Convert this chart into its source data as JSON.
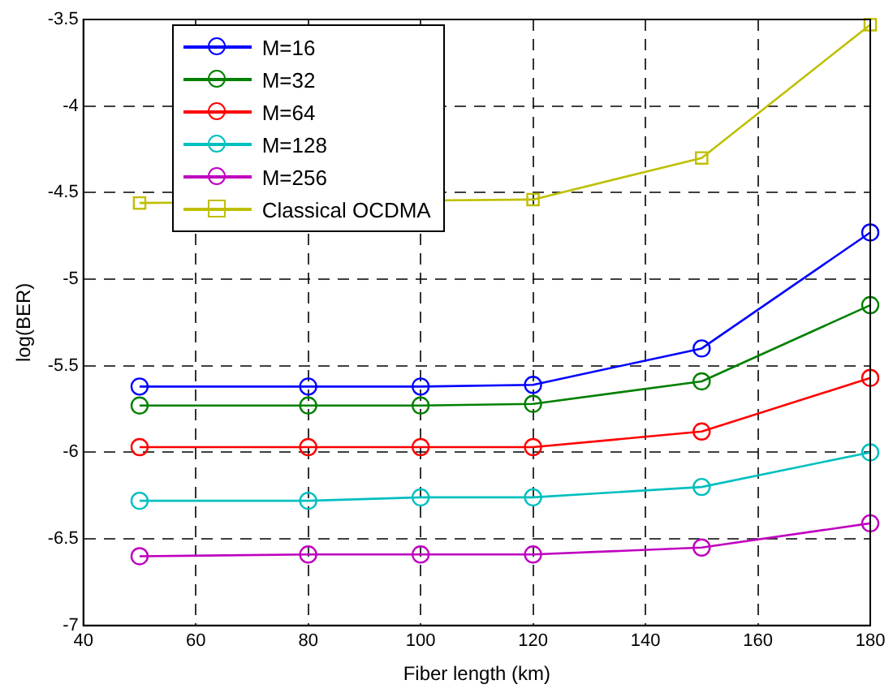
{
  "chart_data": {
    "type": "line",
    "xlabel": "Fiber length (km)",
    "ylabel": "log(BER)",
    "x": [
      50,
      80,
      100,
      120,
      150,
      180
    ],
    "series": [
      {
        "name": "M=16",
        "color": "#0000ff",
        "marker": "circle",
        "values": [
          -5.62,
          -5.62,
          -5.62,
          -5.61,
          -5.4,
          -4.73
        ]
      },
      {
        "name": "M=32",
        "color": "#008000",
        "marker": "circle",
        "values": [
          -5.73,
          -5.73,
          -5.73,
          -5.72,
          -5.59,
          -5.15
        ]
      },
      {
        "name": "M=64",
        "color": "#ff0000",
        "marker": "circle",
        "values": [
          -5.97,
          -5.97,
          -5.97,
          -5.97,
          -5.88,
          -5.57
        ]
      },
      {
        "name": "M=128",
        "color": "#00bfbf",
        "marker": "circle",
        "values": [
          -6.28,
          -6.28,
          -6.26,
          -6.26,
          -6.2,
          -6.0
        ]
      },
      {
        "name": "M=256",
        "color": "#bf00bf",
        "marker": "circle",
        "values": [
          -6.6,
          -6.59,
          -6.59,
          -6.59,
          -6.55,
          -6.41
        ]
      },
      {
        "name": "Classical OCDMA",
        "color": "#bfbf00",
        "marker": "square",
        "values": [
          -4.56,
          null,
          null,
          -4.54,
          -4.3,
          -3.53
        ]
      }
    ],
    "xlim": [
      40,
      180
    ],
    "xticks": [
      40,
      60,
      80,
      100,
      120,
      140,
      160,
      180
    ],
    "ylim": [
      -7,
      -3.5
    ],
    "yticks": [
      -7,
      -6.5,
      -6,
      -5.5,
      -5,
      -4.5,
      -4,
      -3.5
    ],
    "grid": true,
    "legend": "top left",
    "line_style": "solid"
  }
}
